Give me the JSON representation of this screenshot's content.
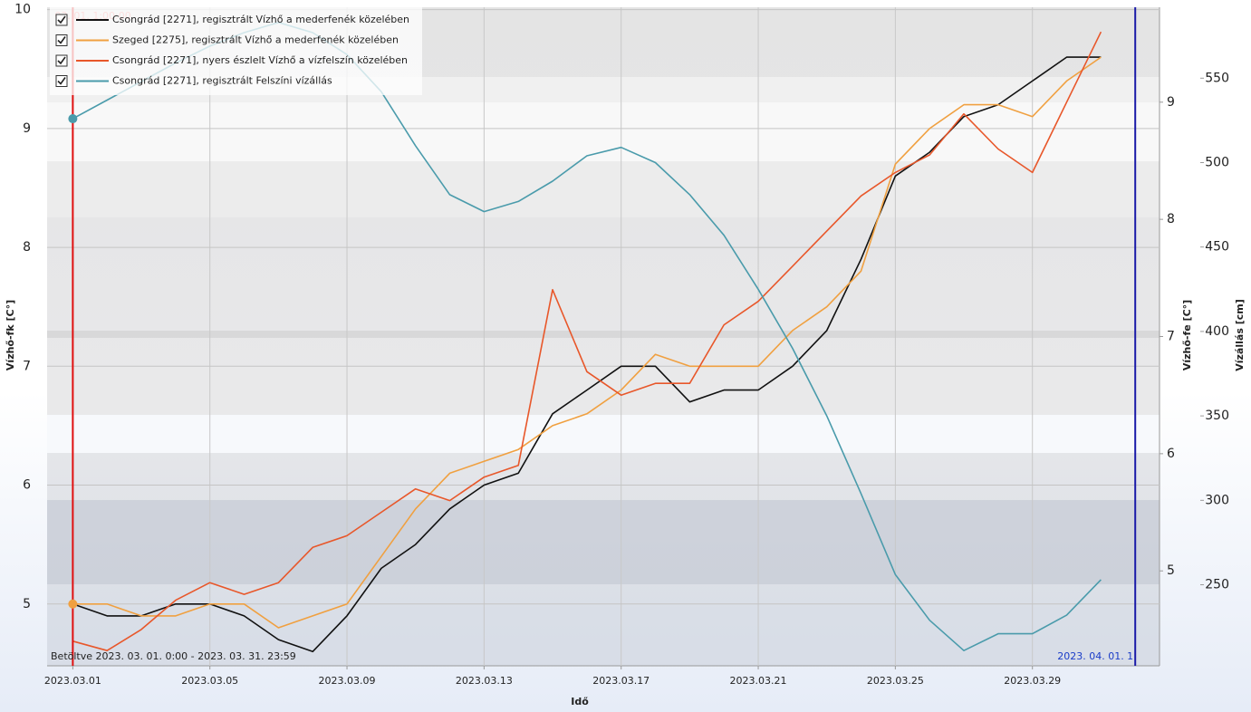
{
  "chart_data": {
    "type": "line",
    "xlabel": "Idő",
    "ylabel": "Vízhő-fk [C°]",
    "y2label": "Vízhő-fe [C°]",
    "y3label": "Vízállás [cm]",
    "loaded_text": "Betöltve 2023. 03. 01. 0:00 - 2023. 03. 31. 23:59",
    "cursor_label": "03. 01. 1:00:00",
    "cursor_x": "2023.03.01 00:00",
    "end_label": "2023. 04. 01. 1",
    "end_x": "2023.04.01 00:00",
    "xlim": [
      "2023.02.28 06:00",
      "2023.04.01 17:00"
    ],
    "xticks": [
      "2023.03.01",
      "2023.03.05",
      "2023.03.09",
      "2023.03.13",
      "2023.03.17",
      "2023.03.21",
      "2023.03.25",
      "2023.03.29"
    ],
    "ylim": [
      4.48,
      10.02
    ],
    "yticks": [
      5,
      6,
      7,
      8,
      9,
      10
    ],
    "y2lim": [
      4.19,
      9.81
    ],
    "y2ticks": [
      5,
      6,
      7,
      8,
      9
    ],
    "y3lim": [
      202,
      592
    ],
    "y3ticks": [
      250,
      300,
      350,
      400,
      450,
      500,
      550
    ],
    "grid": true,
    "legend": "upper left",
    "x": [
      "2023.03.01",
      "2023.03.02",
      "2023.03.03",
      "2023.03.04",
      "2023.03.05",
      "2023.03.06",
      "2023.03.07",
      "2023.03.08",
      "2023.03.09",
      "2023.03.10",
      "2023.03.11",
      "2023.03.12",
      "2023.03.13",
      "2023.03.14",
      "2023.03.15",
      "2023.03.16",
      "2023.03.17",
      "2023.03.18",
      "2023.03.19",
      "2023.03.20",
      "2023.03.21",
      "2023.03.22",
      "2023.03.23",
      "2023.03.24",
      "2023.03.25",
      "2023.03.26",
      "2023.03.27",
      "2023.03.28",
      "2023.03.29",
      "2023.03.30",
      "2023.03.31"
    ],
    "series": [
      {
        "name": "Csongrád [2271], regisztrált Vízhő a mederfenék közelében",
        "color": "#111111",
        "axis": "y",
        "values": [
          5.0,
          4.9,
          4.9,
          5.0,
          5.0,
          4.9,
          4.7,
          4.6,
          4.9,
          5.3,
          5.5,
          5.8,
          6.0,
          6.1,
          6.6,
          6.8,
          7.0,
          7.0,
          6.7,
          6.8,
          6.8,
          7.0,
          7.3,
          7.9,
          8.6,
          8.8,
          9.1,
          9.2,
          9.4,
          9.6,
          9.6
        ]
      },
      {
        "name": "Szeged [2275], regisztrált Vízhő a mederfenék közelében",
        "color": "#f0a040",
        "axis": "y",
        "values": [
          5.0,
          5.0,
          4.9,
          4.9,
          5.0,
          5.0,
          4.8,
          4.9,
          5.0,
          5.4,
          5.8,
          6.1,
          6.2,
          6.3,
          6.5,
          6.6,
          6.8,
          7.1,
          7.0,
          7.0,
          7.0,
          7.3,
          7.5,
          7.8,
          8.7,
          9.0,
          9.2,
          9.2,
          9.1,
          9.4,
          9.6
        ]
      },
      {
        "name": "Csongrád [2271], nyers észlelt Vízhő a vízfelszín közelében",
        "color": "#e8572a",
        "axis": "y2",
        "values": [
          4.4,
          4.32,
          4.5,
          4.75,
          4.9,
          4.8,
          4.9,
          5.2,
          5.3,
          5.5,
          5.7,
          5.6,
          5.8,
          5.9,
          7.4,
          6.7,
          6.5,
          6.6,
          6.6,
          7.1,
          7.3,
          7.6,
          7.9,
          8.2,
          8.4,
          8.55,
          8.9,
          8.6,
          8.4,
          9.0,
          9.6
        ]
      },
      {
        "name": "Csongrád [2271], regisztrált Felszíni vízállás",
        "color": "#4a9bab",
        "axis": "y3",
        "values": [
          526,
          537,
          548,
          559,
          569,
          577,
          583,
          577,
          564,
          542,
          510,
          481,
          471,
          477,
          489,
          504,
          509,
          500,
          481,
          457,
          425,
          390,
          350,
          304,
          256,
          229,
          211,
          221,
          221,
          232,
          253
        ]
      }
    ]
  }
}
